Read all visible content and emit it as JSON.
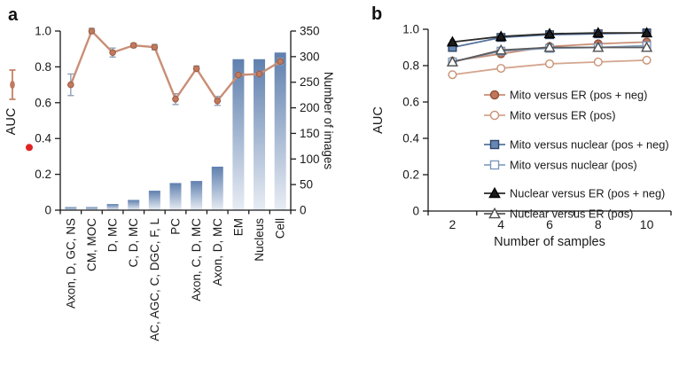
{
  "figure": {
    "panel_a_label": "a",
    "panel_b_label": "b"
  },
  "colors": {
    "salmon_line": "#c98e76",
    "salmon_marker": "#c07a5e",
    "salmon_marker_edge": "#9e5940",
    "bar_top": "#5f80ae",
    "bar_bottom": "#e8edf4",
    "errorbar_gray": "#8fa0b6",
    "point_errorbar": "#8a8a8a",
    "axis": "#1a1a1a",
    "red_dot": "#e02424"
  },
  "chart_data": [
    {
      "id": "a",
      "type": "bar+line",
      "categories": [
        "Axon, D, GC, NS",
        "CM, MOC",
        "D, MC",
        "C, D, MC",
        "AC, AGC, C, DGC, F, L",
        "PC",
        "Axon, C, D, MC",
        "Axon, D, MC",
        "EM",
        "Nucleus",
        "Cell"
      ],
      "line_series": {
        "name": "AUC",
        "values": [
          0.7,
          1.0,
          0.88,
          0.92,
          0.91,
          0.62,
          0.79,
          0.61,
          0.755,
          0.76,
          0.83
        ],
        "errors": [
          0.06,
          0.015,
          0.025,
          0.012,
          0.015,
          0.03,
          0.015,
          0.025,
          0.012,
          0.012,
          0.018
        ]
      },
      "bar_series": {
        "name": "Number of images",
        "values": [
          6,
          6,
          12,
          20,
          38,
          53,
          57,
          85,
          295,
          295,
          308
        ]
      },
      "left_axis": {
        "label": "AUC",
        "range": [
          0,
          1
        ],
        "ticks": [
          0,
          0.2,
          0.4,
          0.6,
          0.8,
          1.0
        ],
        "tick_labels": [
          "0",
          "0.2",
          "0.4",
          "0.6",
          "0.8",
          "1.0"
        ]
      },
      "right_axis": {
        "label": "Number of images",
        "range": [
          0,
          350
        ],
        "ticks": [
          0,
          50,
          100,
          150,
          200,
          250,
          300,
          350
        ],
        "tick_labels": [
          "0",
          "50",
          "100",
          "150",
          "200",
          "250",
          "300",
          "350"
        ]
      },
      "annotations": {
        "red_dot_auc": 0.35,
        "legend_glyph": "auc-errorbar-marker"
      }
    },
    {
      "id": "b",
      "type": "line",
      "x": [
        2,
        4,
        6,
        8,
        10
      ],
      "xlabel": "Number of samples",
      "ylabel": "AUC",
      "xlim": [
        1,
        11
      ],
      "ylim": [
        0,
        1
      ],
      "xticks_minor": [
        1,
        3,
        5,
        7,
        9,
        11
      ],
      "xtick_labels": [
        "2",
        "4",
        "6",
        "8",
        "10"
      ],
      "yticks": [
        0,
        0.2,
        0.4,
        0.6,
        0.8,
        1.0
      ],
      "ytick_labels": [
        "0",
        "0.2",
        "0.4",
        "0.6",
        "0.8",
        "1.0"
      ],
      "point_error": 0.012,
      "legend_position": "inside-right",
      "series": [
        {
          "name": "Mito versus ER (pos + neg)",
          "marker": "circle",
          "filled": true,
          "color": "#c0765a",
          "edge": "#91523a",
          "line_color": "#c98e76",
          "values": [
            0.825,
            0.865,
            0.905,
            0.92,
            0.93
          ]
        },
        {
          "name": "Mito versus ER (pos)",
          "marker": "circle",
          "filled": false,
          "color": "#c79275",
          "edge": "#c79275",
          "line_color": "#d4a58e",
          "values": [
            0.75,
            0.785,
            0.81,
            0.82,
            0.83
          ]
        },
        {
          "name": "Mito versus nuclear (pos + neg)",
          "marker": "square",
          "filled": true,
          "color": "#6787b4",
          "edge": "#2e4569",
          "line_color": "#54749f",
          "values": [
            0.9,
            0.955,
            0.97,
            0.975,
            0.98
          ]
        },
        {
          "name": "Mito versus nuclear (pos)",
          "marker": "square",
          "filled": false,
          "color": "#7e99bd",
          "edge": "#7e99bd",
          "line_color": "#8aa3c6",
          "values": [
            0.82,
            0.88,
            0.895,
            0.9,
            0.91
          ]
        },
        {
          "name": "Nuclear versus ER (pos + neg)",
          "marker": "triangle",
          "filled": true,
          "color": "#1c1c1c",
          "edge": "#000000",
          "line_color": "#2a2a2a",
          "values": [
            0.93,
            0.96,
            0.975,
            0.98,
            0.98
          ]
        },
        {
          "name": "Nuclear versus ER (pos)",
          "marker": "triangle",
          "filled": false,
          "color": "#4f4f4f",
          "edge": "#4f4f4f",
          "line_color": "#5a5a5a",
          "values": [
            0.82,
            0.885,
            0.9,
            0.9,
            0.9
          ]
        }
      ]
    }
  ]
}
